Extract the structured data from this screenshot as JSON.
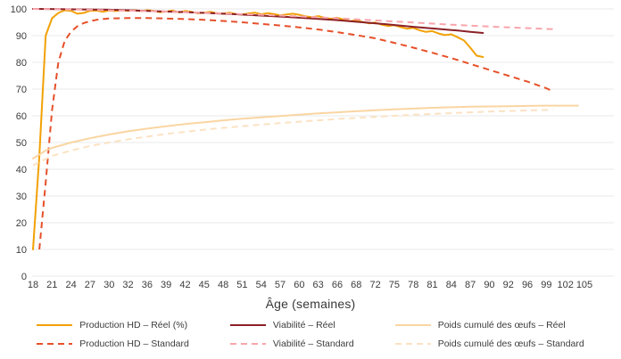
{
  "chart_data": {
    "type": "line",
    "title": "",
    "xlabel": "Âge (semaines)",
    "ylabel": "",
    "ylim": [
      0,
      100
    ],
    "y_ticks": [
      0,
      10,
      20,
      30,
      40,
      50,
      60,
      70,
      80,
      90,
      100
    ],
    "x_tick_labels": [
      "18",
      "21",
      "24",
      "27",
      "30",
      "32",
      "36",
      "39",
      "42",
      "45",
      "48",
      "51",
      "54",
      "57",
      "60",
      "63",
      "66",
      "68",
      "72",
      "75",
      "78",
      "81",
      "84",
      "87",
      "90",
      "92",
      "96",
      "99",
      "102",
      "105"
    ],
    "x_week_range": [
      18,
      105
    ],
    "grid": "horizontal-only",
    "legend_position": "bottom",
    "grid_color": "#e8e8e8",
    "text_color": "#3c3c3c",
    "series": [
      {
        "name": "Production HD – Réel (%)",
        "color": "#F2A105",
        "dash": false,
        "points": [
          [
            18,
            10
          ],
          [
            19,
            45
          ],
          [
            20,
            90
          ],
          [
            21,
            96.5
          ],
          [
            22,
            98.5
          ],
          [
            23,
            99.5
          ],
          [
            24,
            99.3
          ],
          [
            25,
            98.2
          ],
          [
            26,
            98.5
          ],
          [
            27,
            99.3
          ],
          [
            28,
            99.4
          ],
          [
            29,
            98.9
          ],
          [
            30,
            99.4
          ],
          [
            31,
            99.2
          ],
          [
            32,
            99.5
          ],
          [
            33,
            99.3
          ],
          [
            34,
            99.5
          ],
          [
            35,
            99.2
          ],
          [
            36,
            99.5
          ],
          [
            37,
            99.3
          ],
          [
            38,
            98.8
          ],
          [
            39,
            99.0
          ],
          [
            40,
            99.4
          ],
          [
            41,
            98.7
          ],
          [
            42,
            99.2
          ],
          [
            43,
            98.9
          ],
          [
            44,
            98.4
          ],
          [
            45,
            98.6
          ],
          [
            46,
            98.9
          ],
          [
            47,
            98.4
          ],
          [
            48,
            98.2
          ],
          [
            49,
            98.6
          ],
          [
            50,
            98.1
          ],
          [
            51,
            97.9
          ],
          [
            52,
            98.3
          ],
          [
            53,
            98.6
          ],
          [
            54,
            98.0
          ],
          [
            55,
            98.4
          ],
          [
            56,
            98.1
          ],
          [
            57,
            97.6
          ],
          [
            58,
            97.9
          ],
          [
            59,
            98.2
          ],
          [
            60,
            97.8
          ],
          [
            61,
            97.2
          ],
          [
            62,
            96.9
          ],
          [
            63,
            97.3
          ],
          [
            64,
            96.7
          ],
          [
            65,
            96.3
          ],
          [
            66,
            96.7
          ],
          [
            67,
            96.0
          ],
          [
            68,
            95.4
          ],
          [
            69,
            95.8
          ],
          [
            70,
            95.1
          ],
          [
            71,
            94.6
          ],
          [
            72,
            94.9
          ],
          [
            73,
            94.1
          ],
          [
            74,
            93.6
          ],
          [
            75,
            93.9
          ],
          [
            76,
            93.2
          ],
          [
            77,
            92.6
          ],
          [
            78,
            92.9
          ],
          [
            79,
            92.0
          ],
          [
            80,
            91.4
          ],
          [
            81,
            91.7
          ],
          [
            82,
            90.8
          ],
          [
            83,
            90.2
          ],
          [
            84,
            90.5
          ],
          [
            85,
            89.4
          ],
          [
            86,
            88.2
          ],
          [
            87,
            85.5
          ],
          [
            88,
            82.5
          ],
          [
            89,
            82.0
          ]
        ]
      },
      {
        "name": "Production HD – Standard",
        "color": "#E6502A",
        "dash": true,
        "points": [
          [
            19,
            10
          ],
          [
            20,
            35
          ],
          [
            21,
            62
          ],
          [
            22,
            80
          ],
          [
            23,
            88
          ],
          [
            24,
            91.5
          ],
          [
            25,
            93.5
          ],
          [
            26,
            94.7
          ],
          [
            27,
            95.4
          ],
          [
            28,
            95.9
          ],
          [
            29,
            96.2
          ],
          [
            30,
            96.4
          ],
          [
            33,
            96.6
          ],
          [
            36,
            96.6
          ],
          [
            39,
            96.4
          ],
          [
            42,
            96.2
          ],
          [
            45,
            95.9
          ],
          [
            48,
            95.5
          ],
          [
            51,
            95.0
          ],
          [
            54,
            94.4
          ],
          [
            57,
            93.8
          ],
          [
            60,
            93.1
          ],
          [
            63,
            92.3
          ],
          [
            66,
            91.3
          ],
          [
            69,
            90.2
          ],
          [
            72,
            89.0
          ],
          [
            75,
            87.3
          ],
          [
            78,
            85.5
          ],
          [
            81,
            83.6
          ],
          [
            84,
            81.6
          ],
          [
            87,
            79.4
          ],
          [
            90,
            77.2
          ],
          [
            93,
            75.0
          ],
          [
            96,
            72.8
          ],
          [
            99,
            70.3
          ],
          [
            100,
            69.2
          ]
        ]
      },
      {
        "name": "Viabilité – Réel",
        "color": "#8B2026",
        "dash": false,
        "points": [
          [
            18,
            100
          ],
          [
            22,
            99.9
          ],
          [
            26,
            99.8
          ],
          [
            30,
            99.7
          ],
          [
            34,
            99.4
          ],
          [
            38,
            99.1
          ],
          [
            42,
            98.8
          ],
          [
            46,
            98.4
          ],
          [
            50,
            98.0
          ],
          [
            54,
            97.5
          ],
          [
            58,
            97.0
          ],
          [
            62,
            96.4
          ],
          [
            66,
            95.8
          ],
          [
            70,
            95.0
          ],
          [
            74,
            94.2
          ],
          [
            78,
            93.3
          ],
          [
            82,
            92.5
          ],
          [
            85,
            91.9
          ],
          [
            87,
            91.4
          ],
          [
            89,
            91.0
          ]
        ]
      },
      {
        "name": "Viabilité – Standard",
        "color": "#F8A5AC",
        "dash": true,
        "points": [
          [
            18,
            100
          ],
          [
            24,
            99.8
          ],
          [
            30,
            99.5
          ],
          [
            36,
            99.2
          ],
          [
            42,
            98.8
          ],
          [
            48,
            98.3
          ],
          [
            54,
            97.8
          ],
          [
            60,
            97.2
          ],
          [
            66,
            96.5
          ],
          [
            72,
            95.7
          ],
          [
            78,
            94.9
          ],
          [
            84,
            94.1
          ],
          [
            90,
            93.4
          ],
          [
            95,
            92.9
          ],
          [
            100,
            92.4
          ]
        ]
      },
      {
        "name": "Poids cumulé des œufs – Réel",
        "color": "#FAD5A2",
        "dash": false,
        "points": [
          [
            18,
            44
          ],
          [
            19,
            45.5
          ],
          [
            20,
            47
          ],
          [
            21,
            48
          ],
          [
            24,
            50
          ],
          [
            27,
            51.6
          ],
          [
            30,
            53
          ],
          [
            33,
            54.2
          ],
          [
            36,
            55.2
          ],
          [
            39,
            56.1
          ],
          [
            42,
            56.9
          ],
          [
            45,
            57.6
          ],
          [
            48,
            58.3
          ],
          [
            51,
            58.9
          ],
          [
            54,
            59.4
          ],
          [
            57,
            59.9
          ],
          [
            60,
            60.4
          ],
          [
            63,
            60.9
          ],
          [
            66,
            61.3
          ],
          [
            69,
            61.7
          ],
          [
            72,
            62.1
          ],
          [
            75,
            62.4
          ],
          [
            78,
            62.7
          ],
          [
            81,
            63.0
          ],
          [
            84,
            63.2
          ],
          [
            87,
            63.4
          ],
          [
            90,
            63.5
          ],
          [
            93,
            63.6
          ],
          [
            96,
            63.7
          ],
          [
            99,
            63.8
          ],
          [
            102,
            63.8
          ],
          [
            104,
            63.8
          ]
        ]
      },
      {
        "name": "Poids cumulé des œufs – Standard",
        "color": "#FBE2C3",
        "dash": true,
        "points": [
          [
            18,
            41.5
          ],
          [
            21,
            45
          ],
          [
            24,
            47
          ],
          [
            27,
            48.7
          ],
          [
            30,
            50
          ],
          [
            33,
            51.2
          ],
          [
            36,
            52.2
          ],
          [
            39,
            53.2
          ],
          [
            42,
            54
          ],
          [
            45,
            54.8
          ],
          [
            48,
            55.5
          ],
          [
            51,
            56.1
          ],
          [
            54,
            56.7
          ],
          [
            57,
            57.3
          ],
          [
            60,
            57.8
          ],
          [
            63,
            58.3
          ],
          [
            66,
            58.8
          ],
          [
            69,
            59.2
          ],
          [
            72,
            59.6
          ],
          [
            75,
            60
          ],
          [
            78,
            60.4
          ],
          [
            81,
            60.7
          ],
          [
            84,
            61
          ],
          [
            87,
            61.3
          ],
          [
            90,
            61.6
          ],
          [
            93,
            61.8
          ],
          [
            96,
            62
          ],
          [
            99,
            62.2
          ],
          [
            100,
            62.3
          ]
        ]
      }
    ]
  }
}
